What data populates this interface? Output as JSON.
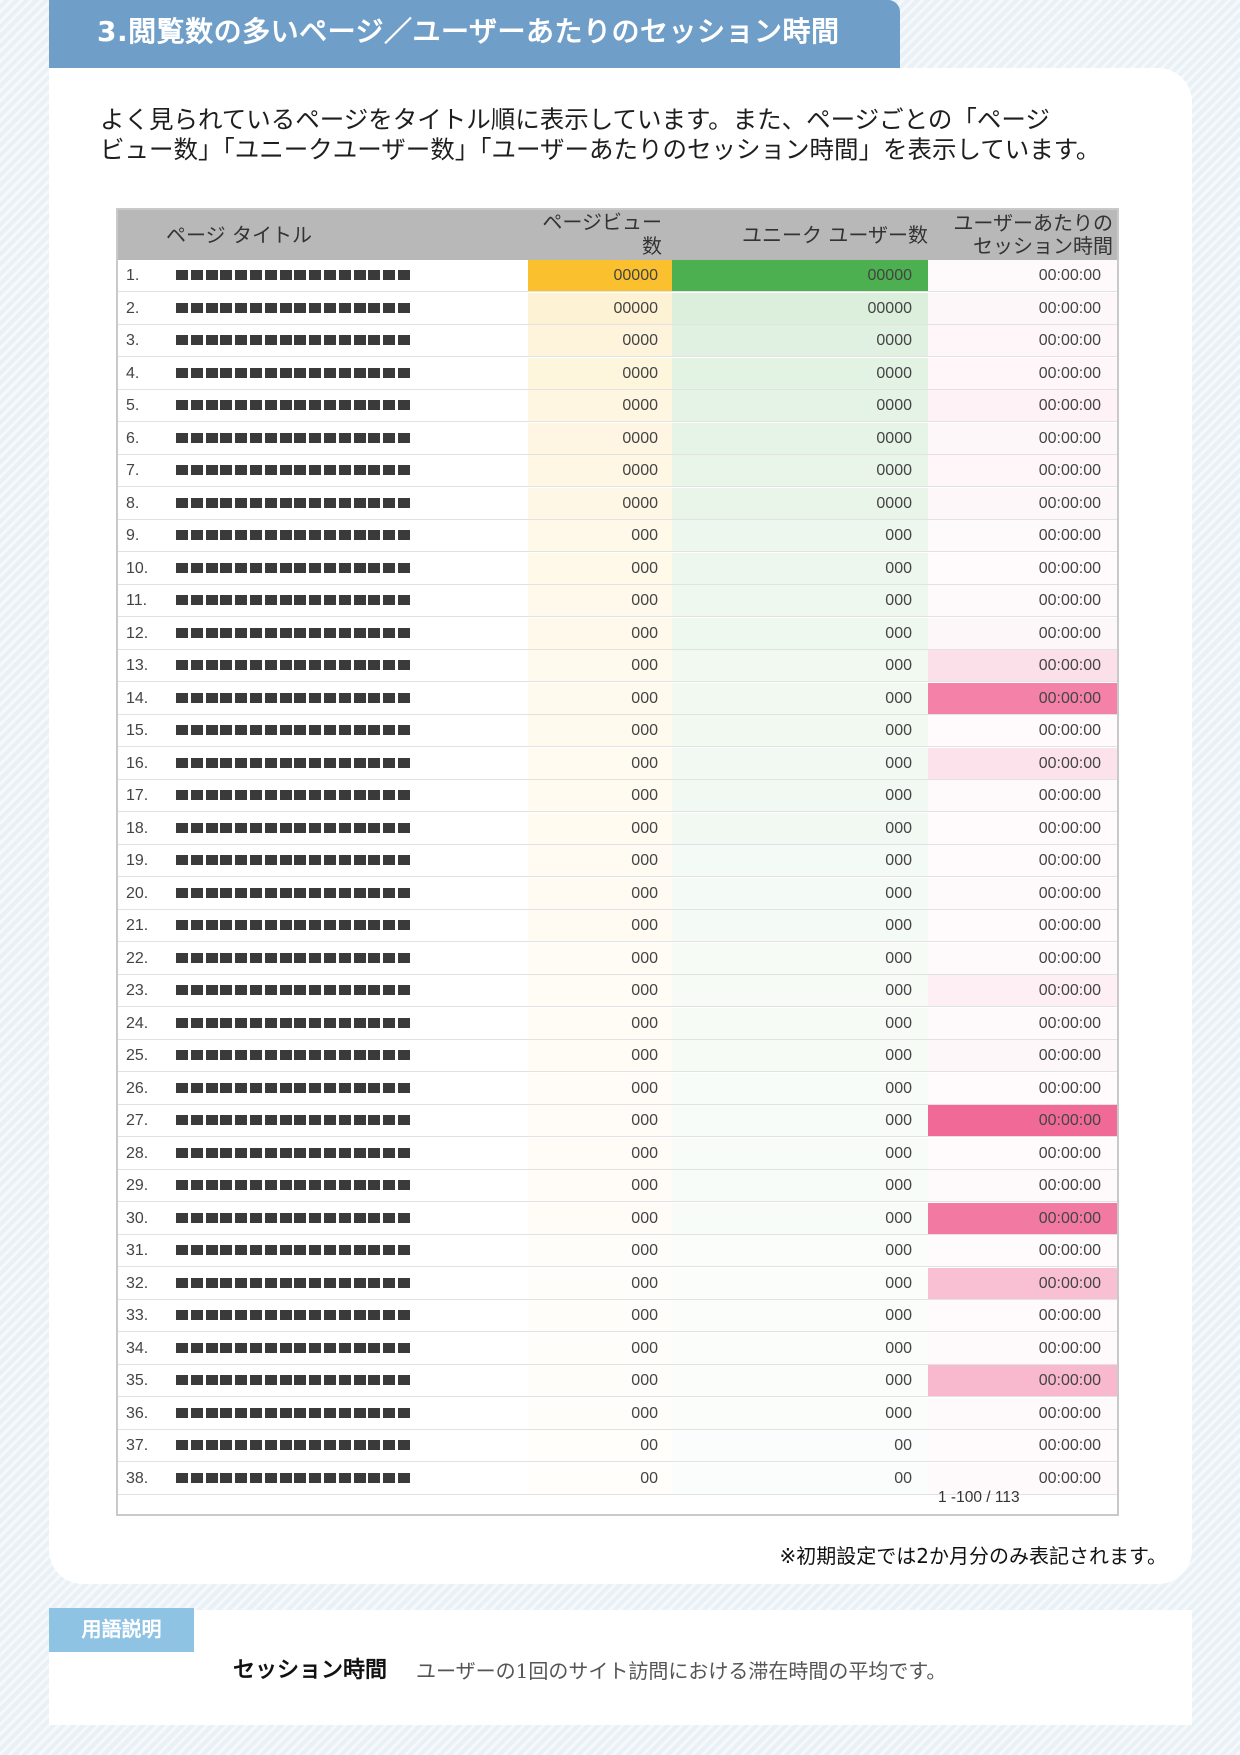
{
  "section": {
    "title": "3.閲覧数の多いページ／ユーザーあたりのセッション時間",
    "intro": "よく見られているページをタイトル順に表示しています。また、ページごとの「ページ\nビュー数」「ユニークユーザー数」「ユーザーあたりのセッション時間」を表示しています。"
  },
  "table": {
    "headers": {
      "title": "ページ タイトル",
      "pageviews": "ページビュー\n数",
      "unique_users": "ユニーク ユーザー数",
      "session_time": "ユーザーあたりの\nセッション時間"
    },
    "colors": {
      "pageviews": "#fbc02d",
      "unique_users": "#4caf50",
      "session_time": "#f06292"
    },
    "rows": [
      {
        "n": "1.",
        "pv": "00000",
        "uu": "00000",
        "st": "00:00:00",
        "pv_level": 1.0,
        "uu_level": 1.0,
        "st_level": 0.04
      },
      {
        "n": "2.",
        "pv": "00000",
        "uu": "00000",
        "st": "00:00:00",
        "pv_level": 0.2,
        "uu_level": 0.2,
        "st_level": 0.05
      },
      {
        "n": "3.",
        "pv": "0000",
        "uu": "0000",
        "st": "00:00:00",
        "pv_level": 0.17,
        "uu_level": 0.17,
        "st_level": 0.06
      },
      {
        "n": "4.",
        "pv": "0000",
        "uu": "0000",
        "st": "00:00:00",
        "pv_level": 0.16,
        "uu_level": 0.16,
        "st_level": 0.06
      },
      {
        "n": "5.",
        "pv": "0000",
        "uu": "0000",
        "st": "00:00:00",
        "pv_level": 0.15,
        "uu_level": 0.15,
        "st_level": 0.08
      },
      {
        "n": "6.",
        "pv": "0000",
        "uu": "0000",
        "st": "00:00:00",
        "pv_level": 0.14,
        "uu_level": 0.14,
        "st_level": 0.05
      },
      {
        "n": "7.",
        "pv": "0000",
        "uu": "0000",
        "st": "00:00:00",
        "pv_level": 0.13,
        "uu_level": 0.13,
        "st_level": 0.06
      },
      {
        "n": "8.",
        "pv": "0000",
        "uu": "0000",
        "st": "00:00:00",
        "pv_level": 0.12,
        "uu_level": 0.12,
        "st_level": 0.05
      },
      {
        "n": "9.",
        "pv": "000",
        "uu": "000",
        "st": "00:00:00",
        "pv_level": 0.1,
        "uu_level": 0.1,
        "st_level": 0.04
      },
      {
        "n": "10.",
        "pv": "000",
        "uu": "000",
        "st": "00:00:00",
        "pv_level": 0.1,
        "uu_level": 0.1,
        "st_level": 0.03
      },
      {
        "n": "11.",
        "pv": "000",
        "uu": "000",
        "st": "00:00:00",
        "pv_level": 0.09,
        "uu_level": 0.09,
        "st_level": 0.04
      },
      {
        "n": "12.",
        "pv": "000",
        "uu": "000",
        "st": "00:00:00",
        "pv_level": 0.09,
        "uu_level": 0.09,
        "st_level": 0.05
      },
      {
        "n": "13.",
        "pv": "000",
        "uu": "000",
        "st": "00:00:00",
        "pv_level": 0.08,
        "uu_level": 0.08,
        "st_level": 0.2
      },
      {
        "n": "14.",
        "pv": "000",
        "uu": "000",
        "st": "00:00:00",
        "pv_level": 0.08,
        "uu_level": 0.08,
        "st_level": 0.8
      },
      {
        "n": "15.",
        "pv": "000",
        "uu": "000",
        "st": "00:00:00",
        "pv_level": 0.08,
        "uu_level": 0.08,
        "st_level": 0.03
      },
      {
        "n": "16.",
        "pv": "000",
        "uu": "000",
        "st": "00:00:00",
        "pv_level": 0.07,
        "uu_level": 0.07,
        "st_level": 0.18
      },
      {
        "n": "17.",
        "pv": "000",
        "uu": "000",
        "st": "00:00:00",
        "pv_level": 0.07,
        "uu_level": 0.07,
        "st_level": 0.04
      },
      {
        "n": "18.",
        "pv": "000",
        "uu": "000",
        "st": "00:00:00",
        "pv_level": 0.07,
        "uu_level": 0.07,
        "st_level": 0.03
      },
      {
        "n": "19.",
        "pv": "000",
        "uu": "000",
        "st": "00:00:00",
        "pv_level": 0.06,
        "uu_level": 0.06,
        "st_level": 0.03
      },
      {
        "n": "20.",
        "pv": "000",
        "uu": "000",
        "st": "00:00:00",
        "pv_level": 0.06,
        "uu_level": 0.06,
        "st_level": 0.04
      },
      {
        "n": "21.",
        "pv": "000",
        "uu": "000",
        "st": "00:00:00",
        "pv_level": 0.06,
        "uu_level": 0.06,
        "st_level": 0.03
      },
      {
        "n": "22.",
        "pv": "000",
        "uu": "000",
        "st": "00:00:00",
        "pv_level": 0.05,
        "uu_level": 0.05,
        "st_level": 0.04
      },
      {
        "n": "23.",
        "pv": "000",
        "uu": "000",
        "st": "00:00:00",
        "pv_level": 0.05,
        "uu_level": 0.05,
        "st_level": 0.1
      },
      {
        "n": "24.",
        "pv": "000",
        "uu": "000",
        "st": "00:00:00",
        "pv_level": 0.05,
        "uu_level": 0.05,
        "st_level": 0.04
      },
      {
        "n": "25.",
        "pv": "000",
        "uu": "000",
        "st": "00:00:00",
        "pv_level": 0.05,
        "uu_level": 0.05,
        "st_level": 0.05
      },
      {
        "n": "26.",
        "pv": "000",
        "uu": "000",
        "st": "00:00:00",
        "pv_level": 0.04,
        "uu_level": 0.04,
        "st_level": 0.03
      },
      {
        "n": "27.",
        "pv": "000",
        "uu": "000",
        "st": "00:00:00",
        "pv_level": 0.04,
        "uu_level": 0.04,
        "st_level": 0.95
      },
      {
        "n": "28.",
        "pv": "000",
        "uu": "000",
        "st": "00:00:00",
        "pv_level": 0.04,
        "uu_level": 0.04,
        "st_level": 0.03
      },
      {
        "n": "29.",
        "pv": "000",
        "uu": "000",
        "st": "00:00:00",
        "pv_level": 0.04,
        "uu_level": 0.04,
        "st_level": 0.04
      },
      {
        "n": "30.",
        "pv": "000",
        "uu": "000",
        "st": "00:00:00",
        "pv_level": 0.04,
        "uu_level": 0.04,
        "st_level": 0.85
      },
      {
        "n": "31.",
        "pv": "000",
        "uu": "000",
        "st": "00:00:00",
        "pv_level": 0.03,
        "uu_level": 0.03,
        "st_level": 0.03
      },
      {
        "n": "32.",
        "pv": "000",
        "uu": "000",
        "st": "00:00:00",
        "pv_level": 0.03,
        "uu_level": 0.03,
        "st_level": 0.4
      },
      {
        "n": "33.",
        "pv": "000",
        "uu": "000",
        "st": "00:00:00",
        "pv_level": 0.03,
        "uu_level": 0.03,
        "st_level": 0.03
      },
      {
        "n": "34.",
        "pv": "000",
        "uu": "000",
        "st": "00:00:00",
        "pv_level": 0.03,
        "uu_level": 0.03,
        "st_level": 0.04
      },
      {
        "n": "35.",
        "pv": "000",
        "uu": "000",
        "st": "00:00:00",
        "pv_level": 0.03,
        "uu_level": 0.03,
        "st_level": 0.45
      },
      {
        "n": "36.",
        "pv": "000",
        "uu": "000",
        "st": "00:00:00",
        "pv_level": 0.03,
        "uu_level": 0.03,
        "st_level": 0.04
      },
      {
        "n": "37.",
        "pv": "00",
        "uu": "00",
        "st": "00:00:00",
        "pv_level": 0.02,
        "uu_level": 0.02,
        "st_level": 0.03
      },
      {
        "n": "38.",
        "pv": "00",
        "uu": "00",
        "st": "00:00:00",
        "pv_level": 0.02,
        "uu_level": 0.02,
        "st_level": 0.04
      }
    ],
    "pagination": "1 -100 / 113"
  },
  "footnote": "※初期設定では2か月分のみ表記されます。",
  "glossary": {
    "tab": "用語説明",
    "term": "セッション時間",
    "definition": "ユーザーの1回のサイト訪問における滞在時間の平均です。"
  }
}
